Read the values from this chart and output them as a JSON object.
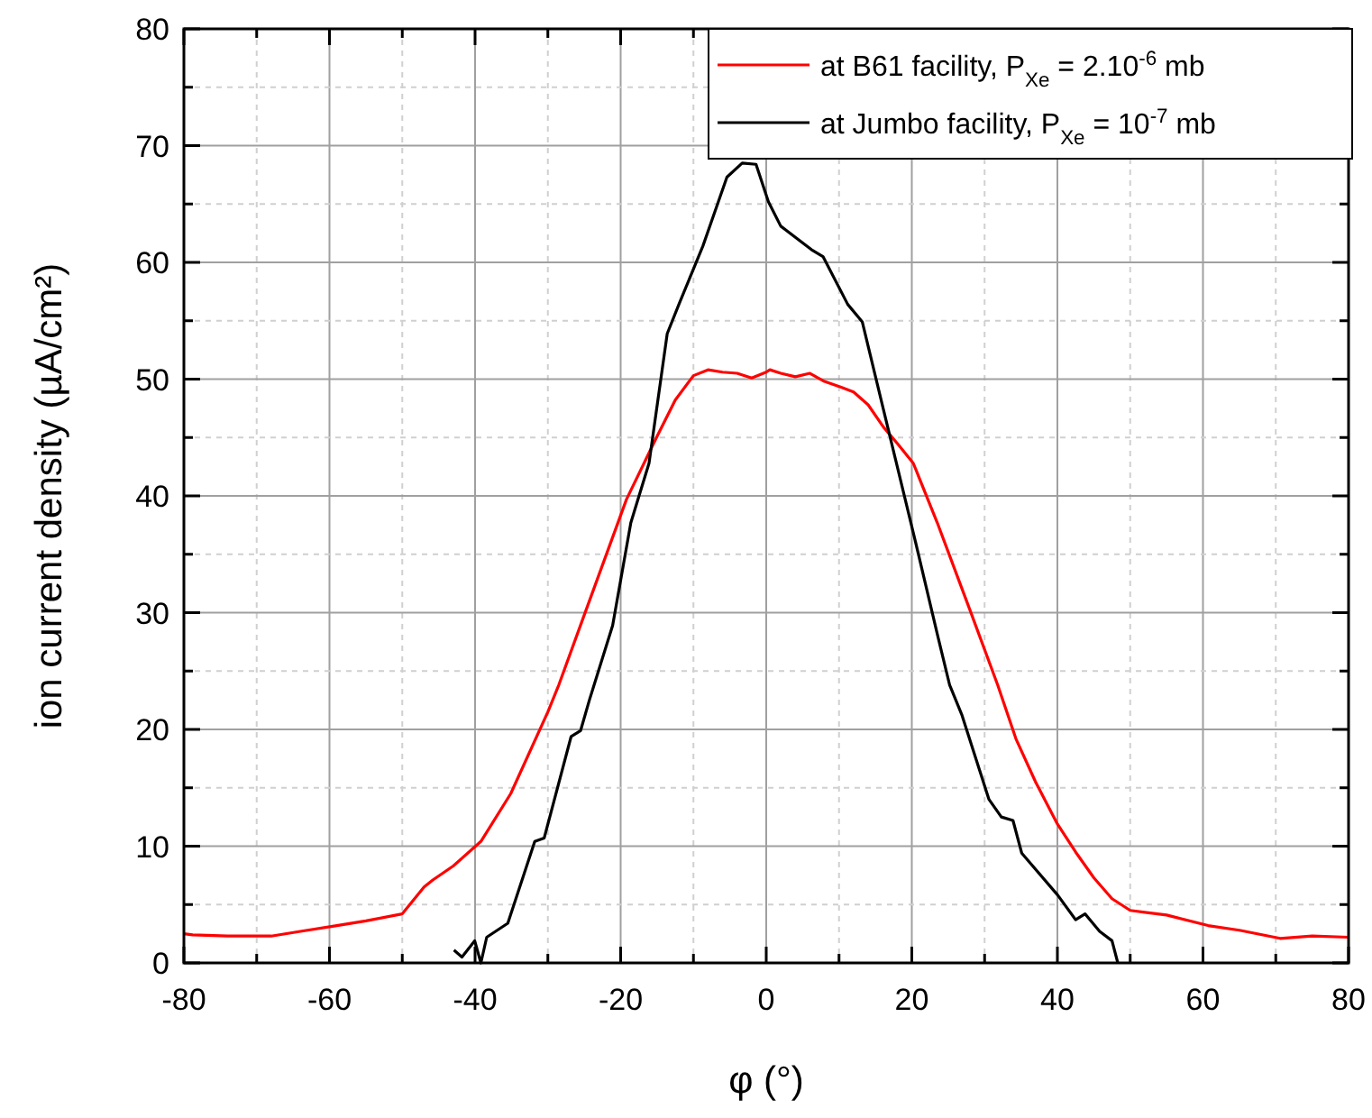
{
  "chart_data": {
    "type": "line",
    "xlabel": "φ (°)",
    "ylabel": "ion current density (µA/cm²)",
    "xlim": [
      -80,
      80
    ],
    "ylim": [
      0,
      80
    ],
    "xticks": [
      -80,
      {
        "value": -70,
        "label": null
      },
      -60,
      {
        "value": -50,
        "label": null
      },
      -40,
      {
        "value": -30,
        "label": null
      },
      -20,
      {
        "value": -10,
        "label": null
      },
      0,
      {
        "value": 10,
        "label": null
      },
      20,
      {
        "value": 30,
        "label": null
      },
      40,
      {
        "value": 50,
        "label": null
      },
      60,
      {
        "value": 70,
        "label": null
      },
      80
    ],
    "yticks": [
      0,
      {
        "value": 5,
        "label": null
      },
      10,
      {
        "value": 15,
        "label": null
      },
      20,
      {
        "value": 25,
        "label": null
      },
      30,
      {
        "value": 35,
        "label": null
      },
      40,
      {
        "value": 45,
        "label": null
      },
      50,
      {
        "value": 55,
        "label": null
      },
      60,
      {
        "value": 65,
        "label": null
      },
      70,
      {
        "value": 75,
        "label": null
      },
      80
    ],
    "grid": true,
    "legend": "top right",
    "line_style": "solid",
    "marker": "none",
    "series": [
      {
        "name": "at B61 facility, P$_{Xe}$ = 2.10$^{-6}$ mb",
        "color": "#ff0000",
        "x": [
          -80,
          -78.8,
          -74,
          -68,
          -64,
          -59,
          -55,
          -50,
          -47,
          -45.8,
          -43,
          -39.2,
          -35.1,
          -30,
          -28.5,
          -25,
          -19.2,
          -15,
          -12.5,
          -10,
          -8,
          -6,
          -4,
          -2,
          0,
          0.5,
          2,
          4,
          6,
          8,
          10.3,
          12,
          14,
          16.1,
          18,
          20.2,
          23.5,
          25,
          28,
          31.8,
          34.3,
          37,
          40,
          42.5,
          45,
          47.5,
          50,
          55,
          60.7,
          65,
          70.6,
          75,
          80
        ],
        "values": [
          2.5,
          2.4,
          2.3,
          2.3,
          2.7,
          3.2,
          3.6,
          4.2,
          6.5,
          7.1,
          8.3,
          10.4,
          14.5,
          21.5,
          23.8,
          29.8,
          39.7,
          45.1,
          48.2,
          50.3,
          50.8,
          50.6,
          50.5,
          50.1,
          50.6,
          50.8,
          50.5,
          50.2,
          50.5,
          49.8,
          49.3,
          48.9,
          47.8,
          45.9,
          44.5,
          42.8,
          37.7,
          35.2,
          30.2,
          23.8,
          19.2,
          15.5,
          11.9,
          9.5,
          7.3,
          5.5,
          4.5,
          4.1,
          3.2,
          2.8,
          2.1,
          2.3,
          2.2
        ]
      },
      {
        "name": "at Jumbo facility, P$_{Xe}$ = 10$^{-7}$ mb",
        "color": "#000000",
        "x": [
          -42.9,
          -41.8,
          -40.05,
          -39.2,
          -38.4,
          -35.5,
          -31.8,
          -30.5,
          -26.8,
          -25.5,
          -24.3,
          -21.1,
          -18.6,
          -16.1,
          -13.6,
          -12,
          -8.7,
          -5.4,
          -3.3,
          -1.4,
          0.3,
          2,
          6.2,
          7.8,
          11.2,
          13.2,
          16.1,
          20.3,
          23.6,
          25.2,
          26.9,
          30.6,
          32.3,
          33.9,
          35.1,
          40.05,
          42.5,
          43.8,
          45.8,
          47.5,
          48.3
        ],
        "values": [
          1.1,
          0.5,
          1.9,
          0,
          2.2,
          3.4,
          10.4,
          10.7,
          19.4,
          19.9,
          22.5,
          28.9,
          37.7,
          42.8,
          53.9,
          56.4,
          61.4,
          67.3,
          68.5,
          68.4,
          65.2,
          63.1,
          61.1,
          60.5,
          56.4,
          54.9,
          47.4,
          36.6,
          27.9,
          23.8,
          21.2,
          14,
          12.5,
          12.2,
          9.4,
          5.8,
          3.7,
          4.2,
          2.7,
          1.9,
          0
        ]
      }
    ]
  }
}
